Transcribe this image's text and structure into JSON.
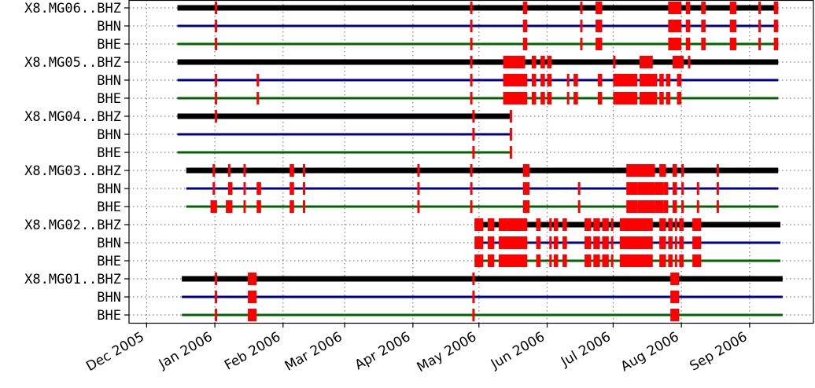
{
  "chart_data": {
    "type": "availability",
    "title": "",
    "xlabel": "",
    "ylabel": "",
    "xlim": [
      "2005-11-23",
      "2006-09-30"
    ],
    "grid": true,
    "x_tick_labels": [
      {
        "date": "2005-12-01",
        "label": "Dec 2005"
      },
      {
        "date": "2006-01-01",
        "label": "Jan 2006"
      },
      {
        "date": "2006-02-01",
        "label": "Feb 2006"
      },
      {
        "date": "2006-03-01",
        "label": "Mar 2006"
      },
      {
        "date": "2006-04-01",
        "label": "Apr 2006"
      },
      {
        "date": "2006-05-01",
        "label": "May 2006"
      },
      {
        "date": "2006-06-01",
        "label": "Jun 2006"
      },
      {
        "date": "2006-07-01",
        "label": "Jul 2006"
      },
      {
        "date": "2006-08-01",
        "label": "Aug 2006"
      },
      {
        "date": "2006-09-01",
        "label": "Sep 2006"
      }
    ],
    "colors": {
      "BHZ": "#000000",
      "BHN": "#00008b",
      "BHE": "#006400",
      "gap": "#ff0000",
      "grid": "#808080"
    },
    "series": [
      {
        "label": "X8.MG06..BHZ",
        "component": "BHZ",
        "start": "2005-12-15",
        "end": "2006-09-14",
        "gaps": [
          [
            "2006-01-01",
            "2006-01-02"
          ],
          [
            "2006-04-27",
            "2006-04-28"
          ],
          [
            "2006-05-21",
            "2006-05-23"
          ],
          [
            "2006-06-16",
            "2006-06-17"
          ],
          [
            "2006-06-23",
            "2006-06-26"
          ],
          [
            "2006-07-26",
            "2006-08-01"
          ],
          [
            "2006-08-03",
            "2006-08-05"
          ],
          [
            "2006-08-10",
            "2006-08-12"
          ],
          [
            "2006-08-23",
            "2006-08-26"
          ],
          [
            "2006-09-05",
            "2006-09-06"
          ],
          [
            "2006-09-12",
            "2006-09-14"
          ]
        ]
      },
      {
        "label": "BHN",
        "component": "BHN",
        "start": "2005-12-15",
        "end": "2006-09-14",
        "gaps": [
          [
            "2006-01-01",
            "2006-01-02"
          ],
          [
            "2006-04-27",
            "2006-04-28"
          ],
          [
            "2006-05-21",
            "2006-05-23"
          ],
          [
            "2006-06-16",
            "2006-06-17"
          ],
          [
            "2006-06-23",
            "2006-06-26"
          ],
          [
            "2006-07-26",
            "2006-08-01"
          ],
          [
            "2006-08-03",
            "2006-08-05"
          ],
          [
            "2006-08-10",
            "2006-08-12"
          ],
          [
            "2006-08-23",
            "2006-08-26"
          ],
          [
            "2006-09-05",
            "2006-09-06"
          ],
          [
            "2006-09-12",
            "2006-09-14"
          ]
        ]
      },
      {
        "label": "BHE",
        "component": "BHE",
        "start": "2005-12-15",
        "end": "2006-09-14",
        "gaps": [
          [
            "2006-01-01",
            "2006-01-02"
          ],
          [
            "2006-04-27",
            "2006-04-28"
          ],
          [
            "2006-05-21",
            "2006-05-23"
          ],
          [
            "2006-06-16",
            "2006-06-17"
          ],
          [
            "2006-06-23",
            "2006-06-26"
          ],
          [
            "2006-07-26",
            "2006-08-01"
          ],
          [
            "2006-08-03",
            "2006-08-05"
          ],
          [
            "2006-08-10",
            "2006-08-12"
          ],
          [
            "2006-08-23",
            "2006-08-26"
          ],
          [
            "2006-09-05",
            "2006-09-06"
          ],
          [
            "2006-09-12",
            "2006-09-14"
          ]
        ]
      },
      {
        "label": "X8.MG05..BHZ",
        "component": "BHZ",
        "start": "2005-12-15",
        "end": "2006-09-14",
        "gaps": [
          [
            "2006-04-27",
            "2006-04-28"
          ],
          [
            "2006-05-12",
            "2006-05-22"
          ],
          [
            "2006-05-25",
            "2006-05-27"
          ],
          [
            "2006-05-29",
            "2006-05-31"
          ],
          [
            "2006-06-01",
            "2006-06-03"
          ],
          [
            "2006-07-01",
            "2006-07-02"
          ],
          [
            "2006-07-13",
            "2006-07-19"
          ],
          [
            "2006-07-28",
            "2006-08-02"
          ],
          [
            "2006-08-04",
            "2006-08-05"
          ]
        ]
      },
      {
        "label": "BHN",
        "component": "BHN",
        "start": "2005-12-15",
        "end": "2006-09-14",
        "gaps": [
          [
            "2006-01-01",
            "2006-01-02"
          ],
          [
            "2006-01-20",
            "2006-01-21"
          ],
          [
            "2006-04-27",
            "2006-04-28"
          ],
          [
            "2006-05-12",
            "2006-05-23"
          ],
          [
            "2006-05-25",
            "2006-05-27"
          ],
          [
            "2006-05-29",
            "2006-05-31"
          ],
          [
            "2006-06-01",
            "2006-06-03"
          ],
          [
            "2006-06-10",
            "2006-06-11"
          ],
          [
            "2006-06-13",
            "2006-06-15"
          ],
          [
            "2006-06-24",
            "2006-06-26"
          ],
          [
            "2006-07-01",
            "2006-07-12"
          ],
          [
            "2006-07-13",
            "2006-07-21"
          ],
          [
            "2006-07-22",
            "2006-07-24"
          ],
          [
            "2006-07-25",
            "2006-07-27"
          ],
          [
            "2006-07-30",
            "2006-08-01"
          ]
        ]
      },
      {
        "label": "BHE",
        "component": "BHE",
        "start": "2005-12-15",
        "end": "2006-09-14",
        "gaps": [
          [
            "2006-01-01",
            "2006-01-02"
          ],
          [
            "2006-01-20",
            "2006-01-21"
          ],
          [
            "2006-04-27",
            "2006-04-28"
          ],
          [
            "2006-05-12",
            "2006-05-23"
          ],
          [
            "2006-05-25",
            "2006-05-27"
          ],
          [
            "2006-05-29",
            "2006-05-31"
          ],
          [
            "2006-06-01",
            "2006-06-03"
          ],
          [
            "2006-06-10",
            "2006-06-11"
          ],
          [
            "2006-06-13",
            "2006-06-15"
          ],
          [
            "2006-06-24",
            "2006-06-26"
          ],
          [
            "2006-07-01",
            "2006-07-12"
          ],
          [
            "2006-07-13",
            "2006-07-21"
          ],
          [
            "2006-07-22",
            "2006-07-24"
          ],
          [
            "2006-07-25",
            "2006-07-27"
          ],
          [
            "2006-07-30",
            "2006-08-01"
          ]
        ]
      },
      {
        "label": "X8.MG04..BHZ",
        "component": "BHZ",
        "start": "2005-12-15",
        "end": "2006-05-16",
        "gaps": [
          [
            "2006-01-01",
            "2006-01-02"
          ],
          [
            "2006-04-28",
            "2006-04-29"
          ],
          [
            "2006-05-15",
            "2006-05-16"
          ]
        ]
      },
      {
        "label": "BHN",
        "component": "BHN",
        "start": "2005-12-15",
        "end": "2006-05-16",
        "gaps": [
          [
            "2006-04-28",
            "2006-04-29"
          ],
          [
            "2006-05-15",
            "2006-05-16"
          ]
        ]
      },
      {
        "label": "BHE",
        "component": "BHE",
        "start": "2005-12-15",
        "end": "2006-05-16",
        "gaps": [
          [
            "2006-04-28",
            "2006-04-29"
          ],
          [
            "2006-05-15",
            "2006-05-16"
          ]
        ]
      },
      {
        "label": "X8.MG03..BHZ",
        "component": "BHZ",
        "start": "2005-12-19",
        "end": "2006-09-14",
        "gaps": [
          [
            "2005-12-31",
            "2006-01-01"
          ],
          [
            "2006-01-07",
            "2006-01-08"
          ],
          [
            "2006-01-14",
            "2006-01-15"
          ],
          [
            "2006-02-04",
            "2006-02-06"
          ],
          [
            "2006-02-10",
            "2006-02-11"
          ],
          [
            "2006-04-03",
            "2006-04-04"
          ],
          [
            "2006-04-27",
            "2006-04-28"
          ],
          [
            "2006-05-21",
            "2006-05-24"
          ],
          [
            "2006-07-07",
            "2006-07-13"
          ],
          [
            "2006-07-13",
            "2006-07-20"
          ],
          [
            "2006-07-22",
            "2006-07-25"
          ],
          [
            "2006-07-28",
            "2006-07-30"
          ],
          [
            "2006-08-01",
            "2006-08-02"
          ],
          [
            "2006-08-17",
            "2006-08-18"
          ]
        ]
      },
      {
        "label": "BHN",
        "component": "BHN",
        "start": "2005-12-19",
        "end": "2006-09-14",
        "gaps": [
          [
            "2005-12-31",
            "2006-01-01"
          ],
          [
            "2006-01-07",
            "2006-01-09"
          ],
          [
            "2006-01-14",
            "2006-01-15"
          ],
          [
            "2006-01-20",
            "2006-01-22"
          ],
          [
            "2006-02-04",
            "2006-02-06"
          ],
          [
            "2006-02-10",
            "2006-02-11"
          ],
          [
            "2006-04-03",
            "2006-04-04"
          ],
          [
            "2006-04-27",
            "2006-04-28"
          ],
          [
            "2006-05-21",
            "2006-05-24"
          ],
          [
            "2006-06-15",
            "2006-06-16"
          ],
          [
            "2006-07-07",
            "2006-07-12"
          ],
          [
            "2006-07-12",
            "2006-07-20"
          ],
          [
            "2006-07-20",
            "2006-07-24"
          ],
          [
            "2006-07-24",
            "2006-07-26"
          ],
          [
            "2006-07-28",
            "2006-07-30"
          ],
          [
            "2006-08-01",
            "2006-08-02"
          ],
          [
            "2006-08-08",
            "2006-08-09"
          ],
          [
            "2006-08-17",
            "2006-08-18"
          ]
        ]
      },
      {
        "label": "BHE",
        "component": "BHE",
        "start": "2005-12-19",
        "end": "2006-09-14",
        "gaps": [
          [
            "2005-12-30",
            "2006-01-02"
          ],
          [
            "2006-01-06",
            "2006-01-09"
          ],
          [
            "2006-01-14",
            "2006-01-15"
          ],
          [
            "2006-01-20",
            "2006-01-22"
          ],
          [
            "2006-02-04",
            "2006-02-06"
          ],
          [
            "2006-02-10",
            "2006-02-11"
          ],
          [
            "2006-04-03",
            "2006-04-04"
          ],
          [
            "2006-04-27",
            "2006-04-28"
          ],
          [
            "2006-05-21",
            "2006-05-24"
          ],
          [
            "2006-06-15",
            "2006-06-16"
          ],
          [
            "2006-07-07",
            "2006-07-12"
          ],
          [
            "2006-07-12",
            "2006-07-20"
          ],
          [
            "2006-07-20",
            "2006-07-24"
          ],
          [
            "2006-07-24",
            "2006-07-26"
          ],
          [
            "2006-07-28",
            "2006-07-30"
          ],
          [
            "2006-08-01",
            "2006-08-02"
          ],
          [
            "2006-08-08",
            "2006-08-09"
          ],
          [
            "2006-08-17",
            "2006-08-18"
          ]
        ]
      },
      {
        "label": "X8.MG02..BHZ",
        "component": "BHZ",
        "start": "2006-04-29",
        "end": "2006-09-15",
        "gaps": [
          [
            "2006-04-29",
            "2006-05-03"
          ],
          [
            "2006-05-05",
            "2006-05-08"
          ],
          [
            "2006-05-10",
            "2006-05-14"
          ],
          [
            "2006-05-14",
            "2006-05-23"
          ],
          [
            "2006-05-27",
            "2006-05-29"
          ],
          [
            "2006-06-02",
            "2006-06-03"
          ],
          [
            "2006-06-04",
            "2006-06-06"
          ],
          [
            "2006-06-08",
            "2006-06-10"
          ],
          [
            "2006-06-18",
            "2006-06-21"
          ],
          [
            "2006-06-22",
            "2006-06-25"
          ],
          [
            "2006-06-26",
            "2006-06-29"
          ],
          [
            "2006-06-30",
            "2006-07-01"
          ],
          [
            "2006-07-04",
            "2006-07-19"
          ],
          [
            "2006-07-22",
            "2006-07-25"
          ],
          [
            "2006-07-26",
            "2006-07-28"
          ],
          [
            "2006-07-29",
            "2006-07-30"
          ],
          [
            "2006-07-31",
            "2006-08-02"
          ],
          [
            "2006-08-06",
            "2006-08-10"
          ]
        ]
      },
      {
        "label": "BHN",
        "component": "BHN",
        "start": "2006-04-29",
        "end": "2006-09-15",
        "gaps": [
          [
            "2006-04-29",
            "2006-05-03"
          ],
          [
            "2006-05-05",
            "2006-05-08"
          ],
          [
            "2006-05-10",
            "2006-05-23"
          ],
          [
            "2006-05-27",
            "2006-05-29"
          ],
          [
            "2006-06-02",
            "2006-06-03"
          ],
          [
            "2006-06-04",
            "2006-06-06"
          ],
          [
            "2006-06-08",
            "2006-06-10"
          ],
          [
            "2006-06-18",
            "2006-06-21"
          ],
          [
            "2006-06-22",
            "2006-06-25"
          ],
          [
            "2006-06-26",
            "2006-06-29"
          ],
          [
            "2006-06-30",
            "2006-07-01"
          ],
          [
            "2006-07-04",
            "2006-07-19"
          ],
          [
            "2006-07-22",
            "2006-07-25"
          ],
          [
            "2006-07-26",
            "2006-07-28"
          ],
          [
            "2006-07-29",
            "2006-07-30"
          ],
          [
            "2006-07-31",
            "2006-08-02"
          ],
          [
            "2006-08-06",
            "2006-08-10"
          ]
        ]
      },
      {
        "label": "BHE",
        "component": "BHE",
        "start": "2006-04-29",
        "end": "2006-09-15",
        "gaps": [
          [
            "2006-04-29",
            "2006-05-03"
          ],
          [
            "2006-05-05",
            "2006-05-08"
          ],
          [
            "2006-05-10",
            "2006-05-23"
          ],
          [
            "2006-05-27",
            "2006-05-29"
          ],
          [
            "2006-06-02",
            "2006-06-03"
          ],
          [
            "2006-06-04",
            "2006-06-06"
          ],
          [
            "2006-06-08",
            "2006-06-10"
          ],
          [
            "2006-06-18",
            "2006-06-21"
          ],
          [
            "2006-06-22",
            "2006-06-25"
          ],
          [
            "2006-06-26",
            "2006-06-29"
          ],
          [
            "2006-06-30",
            "2006-07-01"
          ],
          [
            "2006-07-04",
            "2006-07-19"
          ],
          [
            "2006-07-22",
            "2006-07-25"
          ],
          [
            "2006-07-26",
            "2006-07-28"
          ],
          [
            "2006-07-29",
            "2006-07-30"
          ],
          [
            "2006-07-31",
            "2006-08-02"
          ],
          [
            "2006-08-06",
            "2006-08-10"
          ]
        ]
      },
      {
        "label": "X8.MG01..BHZ",
        "component": "BHZ",
        "start": "2005-12-17",
        "end": "2006-09-16",
        "gaps": [
          [
            "2006-01-01",
            "2006-01-02"
          ],
          [
            "2006-01-16",
            "2006-01-20"
          ],
          [
            "2006-04-28",
            "2006-04-29"
          ],
          [
            "2006-07-27",
            "2006-07-31"
          ]
        ]
      },
      {
        "label": "BHN",
        "component": "BHN",
        "start": "2005-12-17",
        "end": "2006-09-16",
        "gaps": [
          [
            "2006-01-01",
            "2006-01-02"
          ],
          [
            "2006-01-16",
            "2006-01-20"
          ],
          [
            "2006-04-28",
            "2006-04-29"
          ],
          [
            "2006-07-27",
            "2006-07-31"
          ]
        ]
      },
      {
        "label": "BHE",
        "component": "BHE",
        "start": "2005-12-17",
        "end": "2006-09-16",
        "gaps": [
          [
            "2006-01-01",
            "2006-01-02"
          ],
          [
            "2006-01-16",
            "2006-01-20"
          ],
          [
            "2006-04-28",
            "2006-04-29"
          ],
          [
            "2006-07-27",
            "2006-07-31"
          ]
        ]
      }
    ]
  }
}
